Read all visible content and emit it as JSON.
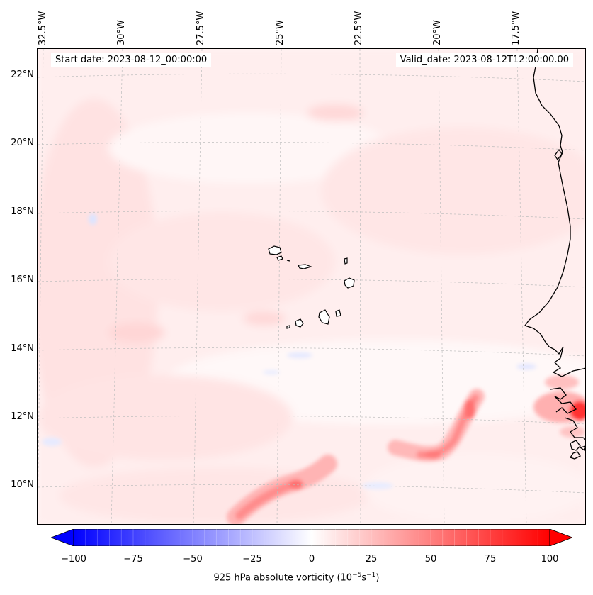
{
  "map": {
    "header": {
      "start_date": "Start date: 2023-08-12_00:00:00",
      "valid_date": "Valid_date: 2023-08-12T12:00:00.00"
    },
    "longitude_labels": [
      "32.5°W",
      "30°W",
      "27.5°W",
      "25°W",
      "22.5°W",
      "20°W",
      "17.5°W"
    ],
    "latitude_labels": [
      "22°N",
      "20°N",
      "18°N",
      "16°N",
      "14°N",
      "12°N",
      "10°N"
    ],
    "features": [
      "cape-verde-islands",
      "west-africa-coastline"
    ],
    "colors": {
      "background": "#fff4f4",
      "coastline": "#000000",
      "gridline": "#bbbbbb",
      "positive_max": "#ff0000",
      "negative_max": "#0000ff",
      "zero": "#ffffff"
    }
  },
  "colorbar": {
    "ticks": [
      "−100",
      "−75",
      "−50",
      "−25",
      "0",
      "25",
      "50",
      "75",
      "100"
    ],
    "tick_values": [
      -100,
      -75,
      -50,
      -25,
      0,
      25,
      50,
      75,
      100
    ],
    "range": [
      -100,
      100
    ],
    "extend": "both",
    "colormap": "bwr",
    "title_prefix": "925 hPa absolute vorticity (10",
    "title_exp1": "−5",
    "title_mid": "s",
    "title_exp2": "−1",
    "title_suffix": ")"
  }
}
